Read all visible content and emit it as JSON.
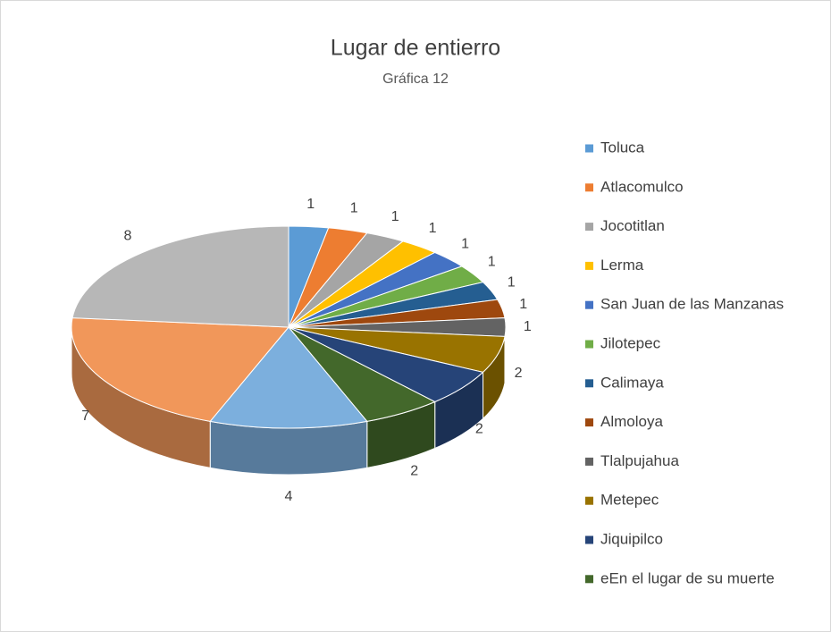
{
  "chart_data": {
    "type": "pie",
    "title": "Lugar de entierro",
    "subtitle": "Gráfica 12",
    "categories": [
      "Toluca",
      "Atlacomulco",
      "Jocotitlan",
      "Lerma",
      "San Juan de las Manzanas",
      "Jilotepec",
      "Calimaya",
      "Almoloya",
      "Tlalpujahua",
      "Metepec",
      "Jiquipilco",
      "eEn el lugar de su muerte",
      null,
      null,
      null
    ],
    "values": [
      1,
      1,
      1,
      1,
      1,
      1,
      1,
      1,
      1,
      2,
      2,
      2,
      4,
      7,
      8
    ],
    "colors": [
      "#5b9bd5",
      "#ed7d31",
      "#a5a5a5",
      "#ffc000",
      "#4472c4",
      "#70ad47",
      "#255e91",
      "#9e480e",
      "#636363",
      "#997300",
      "#264478",
      "#43682b",
      "#7cafdd",
      "#f1975a",
      "#b7b7b7"
    ],
    "legend": "right"
  }
}
